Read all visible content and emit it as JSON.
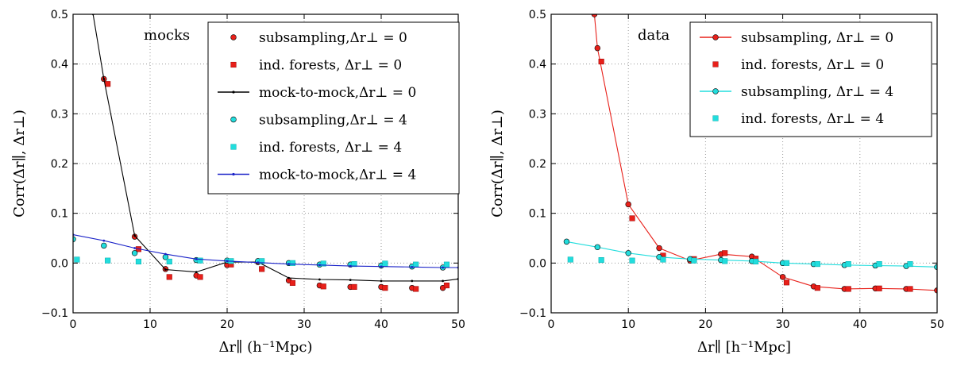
{
  "chart_data": [
    {
      "type": "line",
      "panel_label": "mocks",
      "xlabel": "Δr∥ (h⁻¹Mpc)",
      "ylabel": "Corr(Δr∥, Δr⊥)",
      "xlim": [
        0,
        50
      ],
      "ylim": [
        -0.1,
        0.5
      ],
      "xticks": [
        0,
        10,
        20,
        30,
        40,
        50
      ],
      "yticks": [
        -0.1,
        0.0,
        0.1,
        0.2,
        0.3,
        0.4,
        0.5
      ],
      "ytick_labels": [
        "−0.1",
        "0.0",
        "0.1",
        "0.2",
        "0.3",
        "0.4",
        "0.5"
      ],
      "grid": true,
      "legend_position": "top-right",
      "series": [
        {
          "name": "subsampling,Δr⊥ = 0",
          "style": "marker",
          "marker": "circle",
          "color": "#e8201a",
          "x": [
            4,
            8,
            12,
            16,
            20,
            24,
            28,
            32,
            36,
            40,
            44,
            48
          ],
          "y": [
            0.37,
            0.053,
            -0.012,
            -0.025,
            -0.004,
            0.002,
            -0.035,
            -0.045,
            -0.048,
            -0.048,
            -0.05,
            -0.05
          ]
        },
        {
          "name": "ind. forests, Δr⊥ = 0",
          "style": "marker",
          "marker": "square",
          "color": "#e8201a",
          "x": [
            4.5,
            8.5,
            12.5,
            16.5,
            20.5,
            24.5,
            28.5,
            32.5,
            36.5,
            40.5,
            44.5,
            48.5
          ],
          "y": [
            0.36,
            0.028,
            -0.028,
            -0.028,
            -0.003,
            -0.012,
            -0.04,
            -0.047,
            -0.048,
            -0.05,
            -0.052,
            -0.045
          ]
        },
        {
          "name": "mock-to-mock,Δr⊥ = 0",
          "style": "line",
          "color": "#000000",
          "x": [
            2.6,
            4,
            8,
            12,
            16,
            20,
            24,
            28,
            32,
            36,
            40,
            44,
            48,
            50
          ],
          "y": [
            0.5,
            0.37,
            0.055,
            -0.013,
            -0.018,
            0.002,
            0.002,
            -0.03,
            -0.033,
            -0.034,
            -0.036,
            -0.036,
            -0.036,
            -0.032
          ]
        },
        {
          "name": "subsampling,Δr⊥ = 4",
          "style": "marker",
          "marker": "circle",
          "color": "#22dddd",
          "x": [
            0,
            4,
            8,
            12,
            16,
            20,
            24,
            28,
            32,
            36,
            40,
            44,
            48
          ],
          "y": [
            0.048,
            0.035,
            0.02,
            0.012,
            0.006,
            0.005,
            0.004,
            0.0,
            -0.003,
            -0.003,
            -0.005,
            -0.007,
            -0.009
          ]
        },
        {
          "name": "ind. forests, Δr⊥ = 4",
          "style": "marker",
          "marker": "square",
          "color": "#22dddd",
          "x": [
            0.5,
            4.5,
            8.5,
            12.5,
            16.5,
            20.5,
            24.5,
            28.5,
            32.5,
            36.5,
            40.5,
            44.5,
            48.5
          ],
          "y": [
            0.007,
            0.005,
            0.003,
            0.003,
            0.005,
            0.004,
            0.004,
            0.0,
            -0.001,
            -0.002,
            -0.001,
            -0.003,
            -0.003
          ]
        },
        {
          "name": "mock-to-mock,Δr⊥ = 4",
          "style": "line",
          "color": "#1a22c8",
          "x": [
            0,
            4,
            8,
            12,
            16,
            20,
            24,
            28,
            32,
            36,
            40,
            44,
            48,
            50
          ],
          "y": [
            0.057,
            0.045,
            0.03,
            0.018,
            0.008,
            0.004,
            0.001,
            -0.002,
            -0.004,
            -0.006,
            -0.007,
            -0.008,
            -0.009,
            -0.009
          ]
        }
      ],
      "legend": [
        {
          "label": "subsampling,Δr⊥ = 0",
          "symbol": "circle",
          "color": "#e8201a"
        },
        {
          "label": "ind. forests, Δr⊥ = 0",
          "symbol": "square",
          "color": "#e8201a"
        },
        {
          "label": "mock-to-mock,Δr⊥ = 0",
          "symbol": "line",
          "color": "#000000"
        },
        {
          "label": "subsampling,Δr⊥ = 4",
          "symbol": "circle",
          "color": "#22dddd"
        },
        {
          "label": "ind. forests, Δr⊥ = 4",
          "symbol": "square",
          "color": "#22dddd"
        },
        {
          "label": "mock-to-mock,Δr⊥ = 4",
          "symbol": "line",
          "color": "#1a22c8"
        }
      ]
    },
    {
      "type": "line",
      "panel_label": "data",
      "xlabel": "Δr∥ [h⁻¹Mpc]",
      "ylabel": "Corr(Δr∥, Δr⊥)",
      "xlim": [
        0,
        50
      ],
      "ylim": [
        -0.1,
        0.5
      ],
      "xticks": [
        0,
        10,
        20,
        30,
        40,
        50
      ],
      "yticks": [
        -0.1,
        0.0,
        0.1,
        0.2,
        0.3,
        0.4,
        0.5
      ],
      "ytick_labels": [
        "−0.1",
        "0.0",
        "0.1",
        "0.2",
        "0.3",
        "0.4",
        "0.5"
      ],
      "grid": true,
      "legend_position": "top-right",
      "series": [
        {
          "name": "subsampling, Δr⊥ = 0",
          "style": "line+marker",
          "marker": "circle",
          "color": "#e8201a",
          "x": [
            5.6,
            6,
            10,
            14,
            18,
            22,
            26,
            30,
            34,
            38,
            42,
            46,
            50
          ],
          "y": [
            0.5,
            0.432,
            0.118,
            0.03,
            0.005,
            0.018,
            0.013,
            -0.028,
            -0.047,
            -0.052,
            -0.051,
            -0.052,
            -0.055
          ]
        },
        {
          "name": "ind. forests, Δr⊥ = 0",
          "style": "marker",
          "marker": "square",
          "color": "#e8201a",
          "x": [
            6.5,
            10.5,
            14.5,
            18.5,
            22.5,
            26.5,
            30.5,
            34.5,
            38.5,
            42.5,
            46.5
          ],
          "y": [
            0.405,
            0.09,
            0.015,
            0.008,
            0.02,
            0.009,
            -0.039,
            -0.05,
            -0.052,
            -0.051,
            -0.052
          ]
        },
        {
          "name": "subsampling, Δr⊥ = 4",
          "style": "line+marker",
          "marker": "circle",
          "color": "#22dddd",
          "x": [
            2,
            6,
            10,
            14,
            18,
            22,
            26,
            30,
            34,
            38,
            42,
            46,
            50
          ],
          "y": [
            0.043,
            0.032,
            0.02,
            0.012,
            0.008,
            0.006,
            0.004,
            0.0,
            -0.002,
            -0.004,
            -0.005,
            -0.006,
            -0.008
          ]
        },
        {
          "name": "ind. forests, Δr⊥ = 4",
          "style": "marker",
          "marker": "square",
          "color": "#22dddd",
          "x": [
            2.5,
            6.5,
            10.5,
            14.5,
            18.5,
            22.5,
            26.5,
            30.5,
            34.5,
            38.5,
            42.5,
            46.5
          ],
          "y": [
            0.007,
            0.006,
            0.005,
            0.007,
            0.005,
            0.004,
            0.003,
            0.0,
            -0.002,
            -0.002,
            -0.002,
            -0.002
          ]
        }
      ],
      "legend": [
        {
          "label": "subsampling, Δr⊥ = 0",
          "symbol": "line-circle",
          "color": "#e8201a"
        },
        {
          "label": "ind. forests, Δr⊥ = 0",
          "symbol": "square",
          "color": "#e8201a"
        },
        {
          "label": "subsampling, Δr⊥ = 4",
          "symbol": "line-circle",
          "color": "#22dddd"
        },
        {
          "label": "ind. forests, Δr⊥ = 4",
          "symbol": "square",
          "color": "#22dddd"
        }
      ]
    }
  ]
}
